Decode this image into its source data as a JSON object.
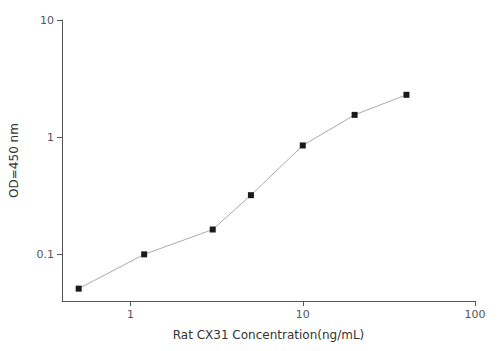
{
  "chart_data": {
    "type": "line",
    "x": [
      0.5,
      1.2,
      3.0,
      5.0,
      10.0,
      20.0,
      40.0
    ],
    "values": [
      0.051,
      0.1,
      0.163,
      0.32,
      0.85,
      1.55,
      2.3
    ],
    "xlabel": "Rat CX31 Concentration(ng/mL)",
    "ylabel": "OD=450 nm",
    "xlim": [
      0.4,
      100
    ],
    "ylim": [
      0.04,
      10
    ],
    "xticks": [
      1,
      10,
      100
    ],
    "yticks": [
      0.1,
      1,
      10
    ],
    "log": true,
    "grid": false,
    "color": "#aaaaaa",
    "marker_color": "#1a1a1a",
    "marker": "square"
  }
}
